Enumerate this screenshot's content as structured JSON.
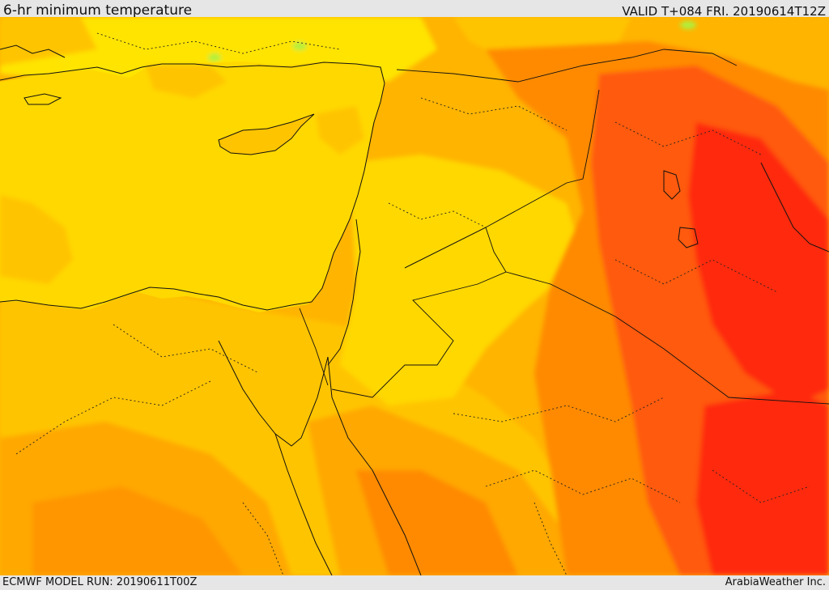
{
  "header": {
    "title": "6-hr minimum temperature",
    "valid": "VALID T+084 FRI. 20190614T12Z"
  },
  "footer": {
    "model_run": "ECMWF MODEL RUN: 20190611T00Z",
    "credit": "ArabiaWeather Inc."
  },
  "colors": {
    "sea": "#ffd800",
    "yellow": "#ffe400",
    "light_orange": "#ffc400",
    "orange": "#ffa800",
    "dark_orange": "#ff8a00",
    "red_orange": "#ff5a10",
    "red": "#ff2a10",
    "green_patch": "#aef03c"
  }
}
